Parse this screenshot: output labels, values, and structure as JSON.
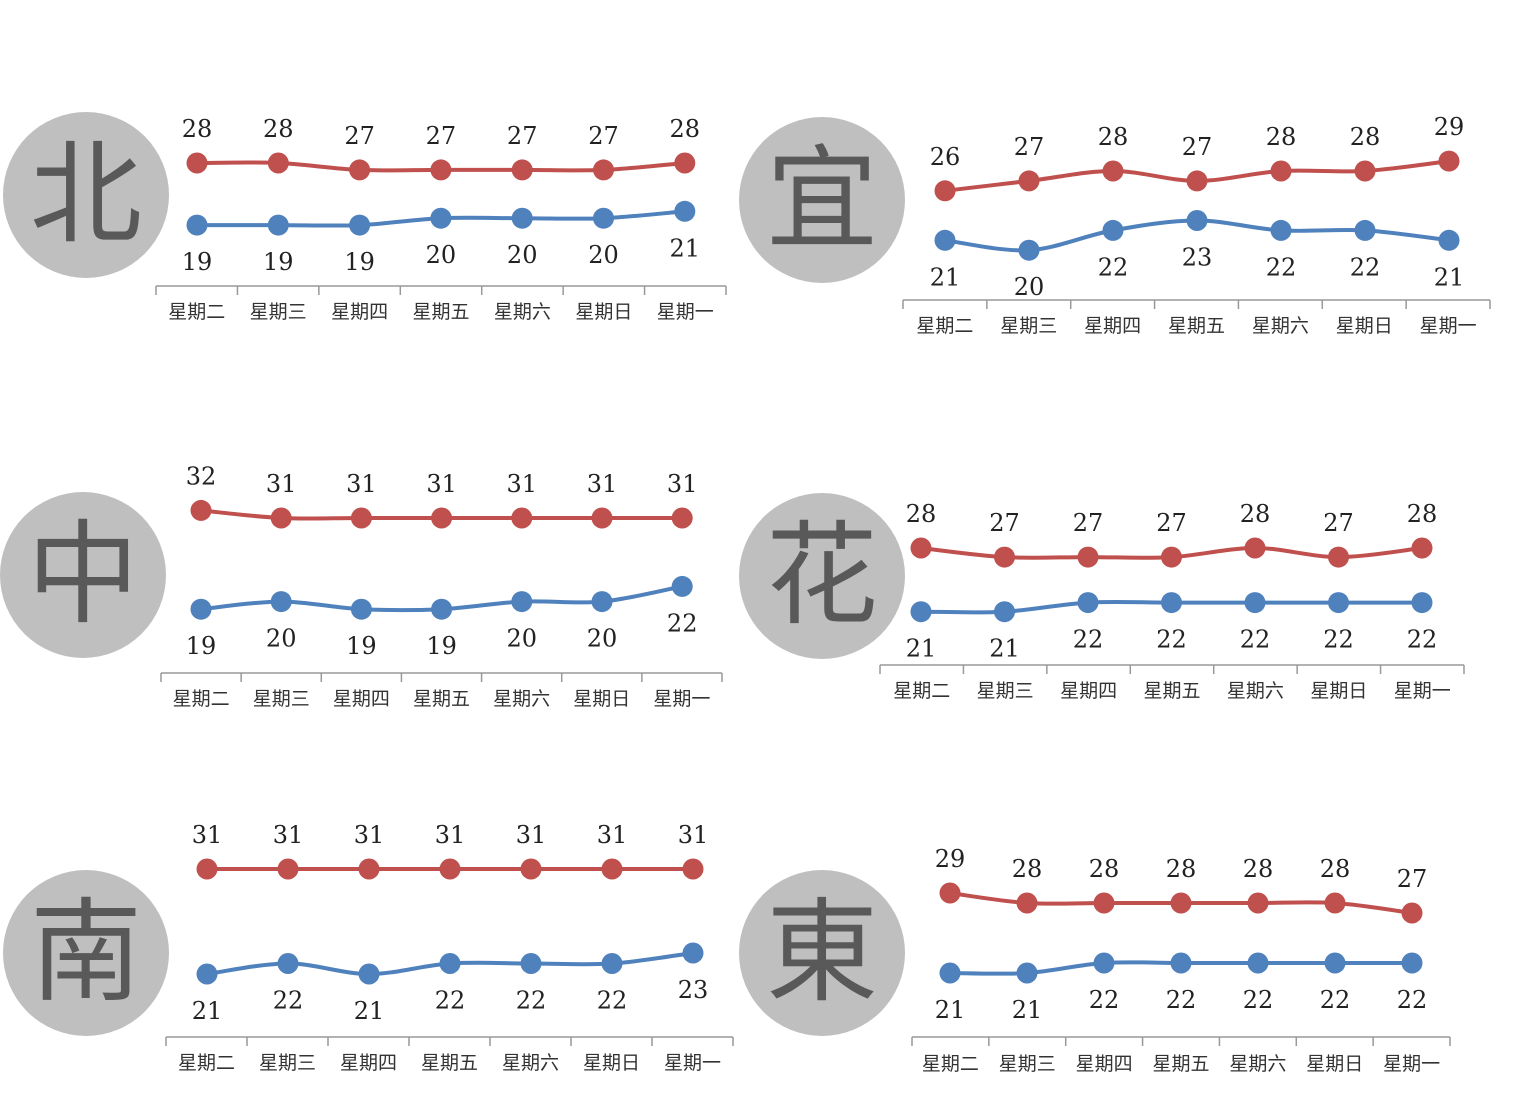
{
  "days": [
    "星期二",
    "星期三",
    "星期四",
    "星期五",
    "星期六",
    "星期日",
    "星期一"
  ],
  "colors": {
    "high": "#c0504d",
    "low": "#4f81bd",
    "badge": "#bfbfbf",
    "badge_text": "#595959",
    "axis": "#999999"
  },
  "chart_data": [
    {
      "type": "line",
      "badge": "北",
      "categories": [
        "星期二",
        "星期三",
        "星期四",
        "星期五",
        "星期六",
        "星期日",
        "星期一"
      ],
      "series": [
        {
          "values": [
            28,
            28,
            27,
            27,
            27,
            27,
            28
          ]
        },
        {
          "values": [
            19,
            19,
            19,
            20,
            20,
            20,
            21
          ]
        }
      ]
    },
    {
      "type": "line",
      "badge": "宜",
      "categories": [
        "星期二",
        "星期三",
        "星期四",
        "星期五",
        "星期六",
        "星期日",
        "星期一"
      ],
      "series": [
        {
          "values": [
            26,
            27,
            28,
            27,
            28,
            28,
            29
          ]
        },
        {
          "values": [
            21,
            20,
            22,
            23,
            22,
            22,
            21
          ]
        }
      ]
    },
    {
      "type": "line",
      "badge": "中",
      "categories": [
        "星期二",
        "星期三",
        "星期四",
        "星期五",
        "星期六",
        "星期日",
        "星期一"
      ],
      "series": [
        {
          "values": [
            32,
            31,
            31,
            31,
            31,
            31,
            31
          ]
        },
        {
          "values": [
            19,
            20,
            19,
            19,
            20,
            20,
            22
          ]
        }
      ]
    },
    {
      "type": "line",
      "badge": "花",
      "categories": [
        "星期二",
        "星期三",
        "星期四",
        "星期五",
        "星期六",
        "星期日",
        "星期一"
      ],
      "series": [
        {
          "values": [
            28,
            27,
            27,
            27,
            28,
            27,
            28
          ]
        },
        {
          "values": [
            21,
            21,
            22,
            22,
            22,
            22,
            22
          ]
        }
      ]
    },
    {
      "type": "line",
      "badge": "南",
      "categories": [
        "星期二",
        "星期三",
        "星期四",
        "星期五",
        "星期六",
        "星期日",
        "星期一"
      ],
      "series": [
        {
          "values": [
            31,
            31,
            31,
            31,
            31,
            31,
            31
          ]
        },
        {
          "values": [
            21,
            22,
            21,
            22,
            22,
            22,
            23
          ]
        }
      ]
    },
    {
      "type": "line",
      "badge": "東",
      "categories": [
        "星期二",
        "星期三",
        "星期四",
        "星期五",
        "星期六",
        "星期日",
        "星期一"
      ],
      "series": [
        {
          "values": [
            29,
            28,
            28,
            28,
            28,
            28,
            27
          ]
        },
        {
          "values": [
            21,
            21,
            22,
            22,
            22,
            22,
            22
          ]
        }
      ]
    }
  ]
}
